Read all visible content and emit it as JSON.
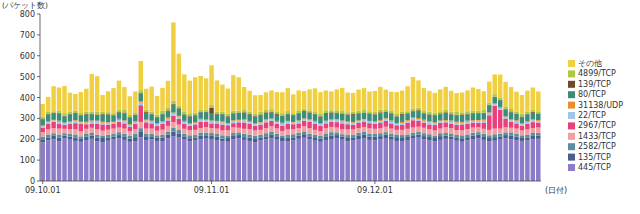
{
  "chart_data": {
    "type": "bar",
    "stacked": true,
    "legend": "right",
    "grid": false,
    "x_label": "(日付)",
    "y_label": "(パケット数)",
    "categories": [
      "09.10.01",
      null,
      null,
      null,
      null,
      null,
      null,
      null,
      null,
      null,
      null,
      null,
      null,
      null,
      null,
      null,
      null,
      null,
      null,
      null,
      null,
      null,
      null,
      null,
      null,
      null,
      null,
      null,
      null,
      null,
      null,
      "09.11.01",
      null,
      null,
      null,
      null,
      null,
      null,
      null,
      null,
      null,
      null,
      null,
      null,
      null,
      null,
      null,
      null,
      null,
      null,
      null,
      null,
      null,
      null,
      null,
      null,
      null,
      null,
      null,
      null,
      null,
      "09.12.01",
      null,
      null,
      null,
      null,
      null,
      null,
      null,
      null,
      null,
      null,
      null,
      null,
      null,
      null,
      null,
      null,
      null,
      null,
      null,
      null,
      null,
      null,
      null,
      null,
      null,
      null,
      null,
      null,
      null,
      null
    ],
    "ylim": [
      0,
      800
    ],
    "yticks": [
      0,
      100,
      200,
      300,
      400,
      500,
      600,
      700,
      800
    ],
    "series": [
      {
        "name": "445/TCP",
        "color": "#8a7cc8",
        "values": [
          185,
          195,
          200,
          190,
          205,
          198,
          192,
          188,
          196,
          202,
          190,
          186,
          193,
          199,
          204,
          197,
          188,
          191,
          210,
          195,
          200,
          192,
          189,
          205,
          215,
          208,
          198,
          190,
          194,
          200,
          203,
          201,
          196,
          190,
          188,
          199,
          205,
          197,
          192,
          186,
          194,
          200,
          204,
          198,
          191,
          189,
          195,
          202,
          207,
          199,
          193,
          188,
          196,
          201,
          205,
          198,
          190,
          194,
          199,
          203,
          197,
          195,
          200,
          206,
          198,
          192,
          189,
          196,
          203,
          208,
          200,
          194,
          190,
          197,
          202,
          199,
          193,
          188,
          195,
          201,
          204,
          197,
          191,
          193,
          198,
          205,
          200,
          196,
          192,
          194,
          199,
          202
        ]
      },
      {
        "name": "135/TCP",
        "color": "#4a5e8c",
        "values": [
          15,
          14,
          16,
          18,
          13,
          15,
          17,
          14,
          16,
          15,
          18,
          20,
          14,
          13,
          16,
          17,
          15,
          19,
          25,
          16,
          14,
          15,
          18,
          17,
          22,
          20,
          16,
          15,
          14,
          17,
          16,
          15,
          16,
          14,
          18,
          17,
          15,
          13,
          16,
          19,
          15,
          14,
          17,
          16,
          15,
          18,
          14,
          16,
          17,
          15,
          13,
          16,
          18,
          17,
          15,
          14,
          16,
          15,
          17,
          18,
          16,
          17,
          15,
          16,
          14,
          18,
          17,
          15,
          16,
          14,
          15,
          17,
          16,
          18,
          15,
          14,
          16,
          17,
          15,
          16,
          18,
          14,
          15,
          17,
          16,
          15,
          18,
          16,
          14,
          15,
          17,
          16
        ]
      },
      {
        "name": "2582/TCP",
        "color": "#5a8ea0",
        "values": [
          12,
          14,
          13,
          15,
          11,
          13,
          14,
          12,
          16,
          13,
          14,
          12,
          15,
          13,
          14,
          12,
          13,
          15,
          18,
          14,
          13,
          12,
          14,
          15,
          17,
          16,
          13,
          14,
          12,
          15,
          13,
          14,
          13,
          15,
          12,
          14,
          13,
          16,
          14,
          12,
          13,
          15,
          14,
          13,
          12,
          14,
          15,
          13,
          14,
          12,
          15,
          13,
          14,
          16,
          13,
          12,
          14,
          13,
          15,
          14,
          13,
          13,
          14,
          12,
          15,
          13,
          14,
          12,
          13,
          15,
          14,
          13,
          12,
          14,
          13,
          15,
          12,
          14,
          13,
          14,
          12,
          15,
          13,
          14,
          12,
          13,
          15,
          14,
          13,
          12,
          14,
          13
        ]
      },
      {
        "name": "1433/TCP",
        "color": "#f0a0a0",
        "values": [
          22,
          25,
          24,
          28,
          21,
          23,
          26,
          24,
          22,
          25,
          27,
          23,
          24,
          26,
          22,
          25,
          23,
          24,
          30,
          26,
          24,
          22,
          25,
          27,
          28,
          26,
          23,
          24,
          25,
          22,
          26,
          24,
          26,
          23,
          25,
          27,
          22,
          24,
          26,
          25,
          23,
          24,
          27,
          25,
          22,
          26,
          24,
          23,
          25,
          27,
          24,
          22,
          26,
          25,
          23,
          24,
          27,
          25,
          23,
          24,
          26,
          25,
          23,
          26,
          24,
          22,
          25,
          27,
          24,
          23,
          26,
          25,
          24,
          22,
          27,
          25,
          23,
          24,
          26,
          25,
          23,
          24,
          26,
          27,
          25,
          24,
          22,
          25,
          23,
          26,
          24,
          25
        ]
      },
      {
        "name": "2967/TCP",
        "color": "#e8407a",
        "values": [
          20,
          25,
          30,
          22,
          18,
          24,
          28,
          35,
          22,
          20,
          26,
          30,
          24,
          22,
          28,
          25,
          20,
          24,
          80,
          30,
          25,
          22,
          28,
          26,
          30,
          28,
          24,
          22,
          26,
          30,
          25,
          22,
          25,
          28,
          24,
          20,
          26,
          30,
          25,
          22,
          24,
          28,
          26,
          22,
          25,
          27,
          24,
          22,
          26,
          30,
          28,
          25,
          22,
          24,
          26,
          28,
          25,
          22,
          24,
          26,
          25,
          24,
          26,
          28,
          25,
          22,
          24,
          30,
          35,
          28,
          25,
          22,
          26,
          28,
          24,
          22,
          25,
          28,
          26,
          24,
          22,
          30,
          70,
          110,
          90,
          40,
          28,
          25,
          22,
          26,
          28,
          24
        ]
      },
      {
        "name": "22/TCP",
        "color": "#9ec8e8",
        "values": [
          8,
          9,
          7,
          10,
          8,
          9,
          11,
          8,
          7,
          9,
          10,
          8,
          9,
          7,
          8,
          10,
          9,
          8,
          12,
          9,
          8,
          10,
          9,
          8,
          11,
          10,
          9,
          8,
          7,
          9,
          8,
          9,
          8,
          10,
          7,
          9,
          8,
          11,
          9,
          8,
          10,
          9,
          7,
          8,
          9,
          10,
          8,
          9,
          7,
          8,
          10,
          9,
          8,
          9,
          11,
          8,
          9,
          10,
          8,
          9,
          7,
          8,
          9,
          10,
          8,
          7,
          9,
          8,
          10,
          9,
          8,
          11,
          9,
          8,
          7,
          9,
          10,
          8,
          9,
          8,
          10,
          9,
          8,
          7,
          9,
          10,
          8,
          9,
          8,
          10,
          9,
          8
        ]
      },
      {
        "name": "31138/UDP",
        "color": "#e89030",
        "values": [
          4,
          5,
          3,
          6,
          4,
          5,
          4,
          3,
          5,
          6,
          4,
          5,
          3,
          4,
          6,
          5,
          4,
          5,
          7,
          4,
          5,
          3,
          4,
          6,
          5,
          4,
          5,
          3,
          4,
          5,
          6,
          5,
          4,
          6,
          3,
          5,
          4,
          5,
          6,
          4,
          3,
          5,
          4,
          6,
          5,
          4,
          3,
          5,
          4,
          6,
          5,
          4,
          5,
          3,
          4,
          6,
          5,
          4,
          5,
          3,
          4,
          4,
          5,
          3,
          6,
          4,
          5,
          4,
          3,
          5,
          6,
          4,
          5,
          3,
          4,
          6,
          5,
          4,
          5,
          4,
          3,
          5,
          6,
          4,
          5,
          3,
          4,
          6,
          5,
          4,
          5,
          4
        ]
      },
      {
        "name": "80/TCP",
        "color": "#3c8c78",
        "values": [
          30,
          32,
          28,
          35,
          30,
          33,
          29,
          31,
          34,
          30,
          28,
          32,
          35,
          30,
          29,
          33,
          31,
          30,
          36,
          32,
          30,
          29,
          33,
          31,
          38,
          34,
          30,
          32,
          29,
          31,
          33,
          32,
          30,
          34,
          29,
          31,
          33,
          30,
          28,
          32,
          35,
          31,
          30,
          29,
          33,
          32,
          30,
          34,
          31,
          29,
          32,
          30,
          33,
          31,
          28,
          32,
          30,
          34,
          31,
          29,
          33,
          31,
          33,
          30,
          32,
          29,
          34,
          31,
          30,
          33,
          28,
          32,
          31,
          30,
          34,
          29,
          31,
          33,
          30,
          32,
          31,
          29,
          33,
          30,
          32,
          31,
          34,
          30,
          29,
          32,
          31,
          30
        ]
      },
      {
        "name": "139/TCP",
        "color": "#6e4a2a",
        "values": [
          3,
          2,
          4,
          3,
          2,
          3,
          4,
          2,
          3,
          3,
          2,
          4,
          3,
          2,
          3,
          4,
          3,
          2,
          3,
          4,
          3,
          2,
          3,
          3,
          4,
          3,
          2,
          3,
          4,
          3,
          2,
          30,
          3,
          2,
          4,
          3,
          2,
          3,
          4,
          3,
          2,
          3,
          3,
          4,
          2,
          3,
          3,
          2,
          4,
          3,
          2,
          3,
          4,
          3,
          3,
          2,
          3,
          4,
          3,
          2,
          3,
          3,
          4,
          2,
          3,
          3,
          4,
          2,
          3,
          4,
          3,
          2,
          3,
          4,
          3,
          2,
          3,
          3,
          4,
          2,
          3,
          4,
          3,
          2,
          3,
          3,
          4,
          2,
          3,
          3,
          4,
          2
        ]
      },
      {
        "name": "4899/TCP",
        "color": "#b0c840",
        "values": [
          10,
          12,
          9,
          11,
          13,
          10,
          12,
          9,
          11,
          10,
          13,
          12,
          10,
          9,
          11,
          12,
          10,
          11,
          14,
          12,
          10,
          11,
          13,
          12,
          15,
          13,
          11,
          10,
          12,
          11,
          10,
          12,
          11,
          10,
          13,
          12,
          9,
          11,
          12,
          10,
          13,
          11,
          12,
          10,
          11,
          12,
          9,
          13,
          11,
          10,
          12,
          11,
          13,
          10,
          11,
          12,
          10,
          11,
          13,
          12,
          10,
          11,
          12,
          10,
          13,
          11,
          12,
          9,
          11,
          13,
          10,
          12,
          11,
          10,
          12,
          11,
          13,
          10,
          11,
          12,
          10,
          13,
          11,
          12,
          10,
          11,
          12,
          10,
          13,
          11,
          12,
          10
        ]
      },
      {
        "name": "その他",
        "color": "#f0d040",
        "values": [
          60,
          70,
          120,
          110,
          130,
          90,
          80,
          100,
          110,
          180,
          170,
          80,
          100,
          120,
          140,
          110,
          90,
          100,
          140,
          100,
          120,
          90,
          110,
          130,
          375,
          248,
          180,
          160,
          170,
          160,
          150,
          190,
          150,
          130,
          120,
          170,
          160,
          110,
          100,
          90,
          80,
          85,
          90,
          95,
          100,
          110,
          90,
          95,
          85,
          100,
          110,
          105,
          95,
          90,
          100,
          110,
          95,
          90,
          100,
          105,
          95,
          100,
          110,
          95,
          90,
          105,
          100,
          120,
          150,
          130,
          110,
          100,
          95,
          105,
          110,
          100,
          90,
          95,
          100,
          110,
          105,
          90,
          100,
          95,
          110,
          120,
          105,
          95,
          90,
          100,
          105,
          95
        ]
      }
    ]
  }
}
